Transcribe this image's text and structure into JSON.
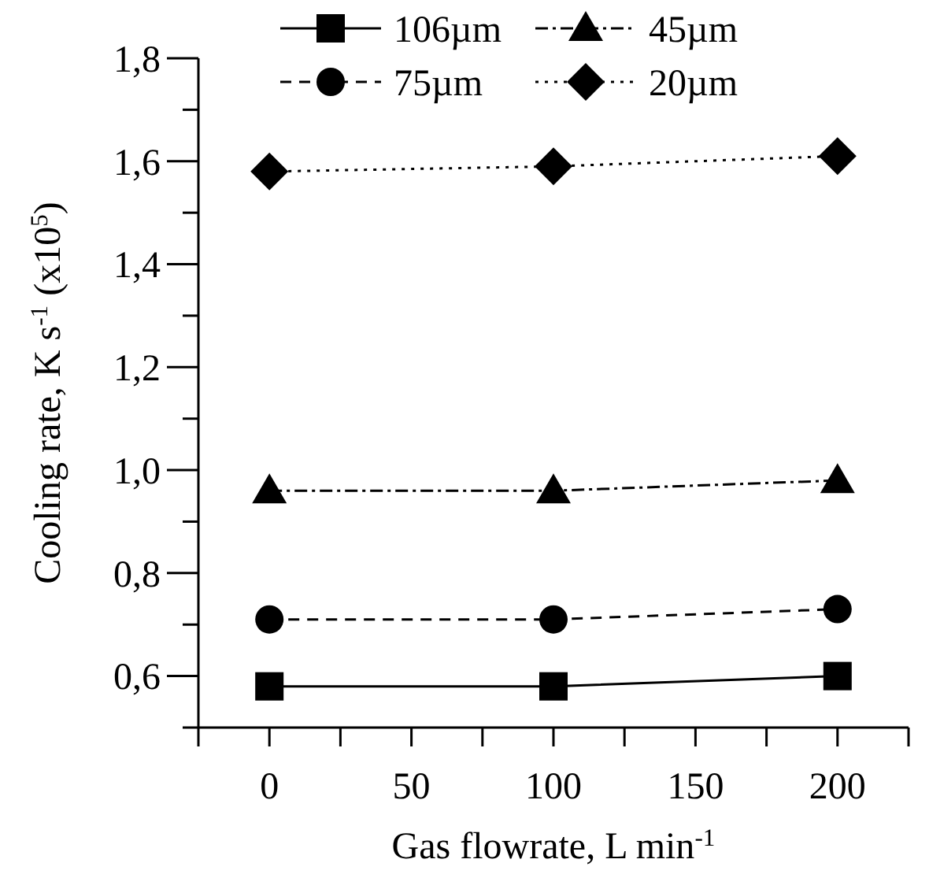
{
  "chart_data": {
    "type": "line",
    "xlabel": "Gas flowrate, L min$^{-1}$",
    "ylabel": "Cooling rate, K s$^{-1}$ (x10$^{5}$)",
    "x": [
      0,
      100,
      200
    ],
    "series": [
      {
        "name": "106µm",
        "color": "#000000",
        "values": [
          0.58,
          0.58,
          0.6
        ],
        "marker": "square",
        "line_style": "solid"
      },
      {
        "name": "45µm",
        "color": "#000000",
        "values": [
          0.96,
          0.96,
          0.98
        ],
        "marker": "triangle",
        "line_style": "dashdot"
      },
      {
        "name": "75µm",
        "color": "#000000",
        "values": [
          0.71,
          0.71,
          0.73
        ],
        "marker": "circle",
        "line_style": "dashed"
      },
      {
        "name": "20µm",
        "color": "#000000",
        "values": [
          1.58,
          1.59,
          1.61
        ],
        "marker": "diamond",
        "line_style": "dotted"
      }
    ],
    "xlim": [
      -25,
      225
    ],
    "xticks": [
      {
        "value": -25,
        "label": null
      },
      0,
      {
        "value": 25,
        "label": null
      },
      50,
      {
        "value": 75,
        "label": null
      },
      100,
      {
        "value": 125,
        "label": null
      },
      150,
      {
        "value": 175,
        "label": null
      },
      200,
      {
        "value": 225,
        "label": null
      }
    ],
    "ylim": [
      0.5,
      1.8
    ],
    "yticks": [
      {
        "value": 0.5,
        "label": null
      },
      {
        "value": 0.6,
        "label": "0,6"
      },
      {
        "value": 0.7,
        "label": null
      },
      {
        "value": 0.8,
        "label": "0,8"
      },
      {
        "value": 0.9,
        "label": null
      },
      {
        "value": 1.0,
        "label": "1,0"
      },
      {
        "value": 1.1,
        "label": null
      },
      {
        "value": 1.2,
        "label": "1,2"
      },
      {
        "value": 1.3,
        "label": null
      },
      {
        "value": 1.4,
        "label": "1,4"
      },
      {
        "value": 1.5,
        "label": null
      },
      {
        "value": 1.6,
        "label": "1,6"
      },
      {
        "value": 1.7,
        "label": null
      },
      {
        "value": 1.8,
        "label": "1,8"
      }
    ],
    "grid": false,
    "legend": "top"
  }
}
